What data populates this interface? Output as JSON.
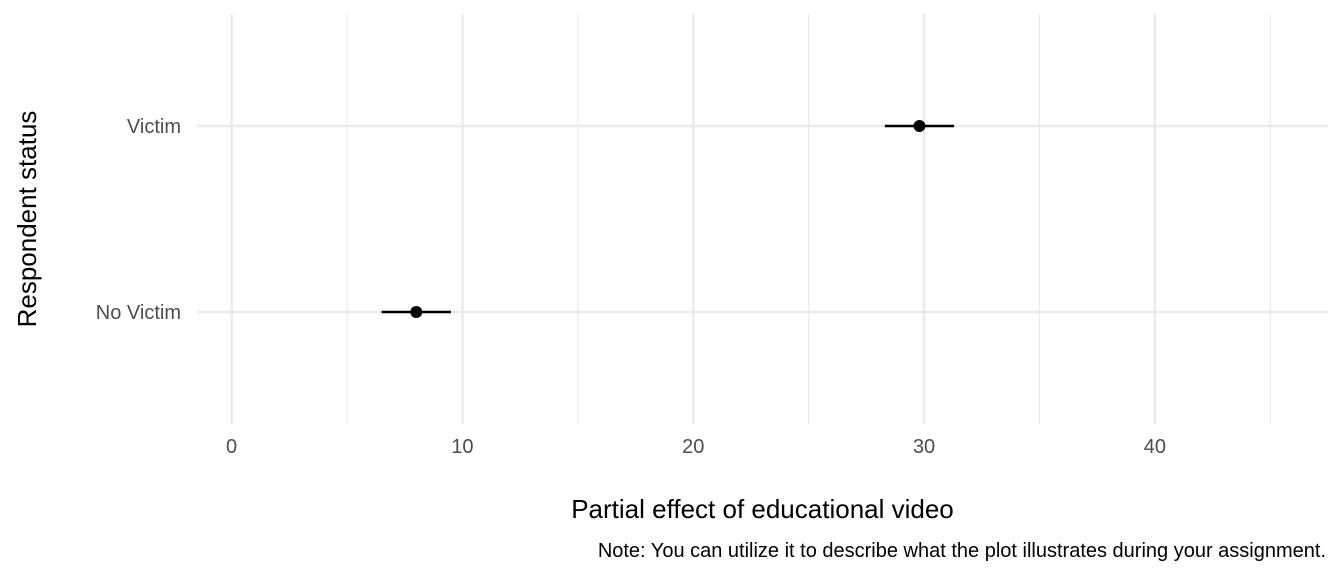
{
  "chart_data": {
    "type": "point-range",
    "orientation": "horizontal",
    "title": "",
    "xlabel": "Partial effect of educational video",
    "ylabel": "Respondent status",
    "caption": "Note: You can utilize it to describe what the plot illustrates during your assignment.",
    "xlim": [
      -1.5,
      47.5
    ],
    "x_ticks": [
      0,
      10,
      20,
      30,
      40
    ],
    "x_minor_ticks": [
      5,
      15,
      25,
      35,
      45
    ],
    "categories": [
      "No Victim",
      "Victim"
    ],
    "points": [
      {
        "category": "No Victim",
        "estimate": 8.0,
        "lower": 6.5,
        "upper": 9.5
      },
      {
        "category": "Victim",
        "estimate": 29.8,
        "lower": 28.3,
        "upper": 31.3
      }
    ],
    "grid": true,
    "legend": "none",
    "colors": {
      "grid": "#ebebeb",
      "point": "#000000",
      "tick_text": "#4d4d4d"
    }
  }
}
